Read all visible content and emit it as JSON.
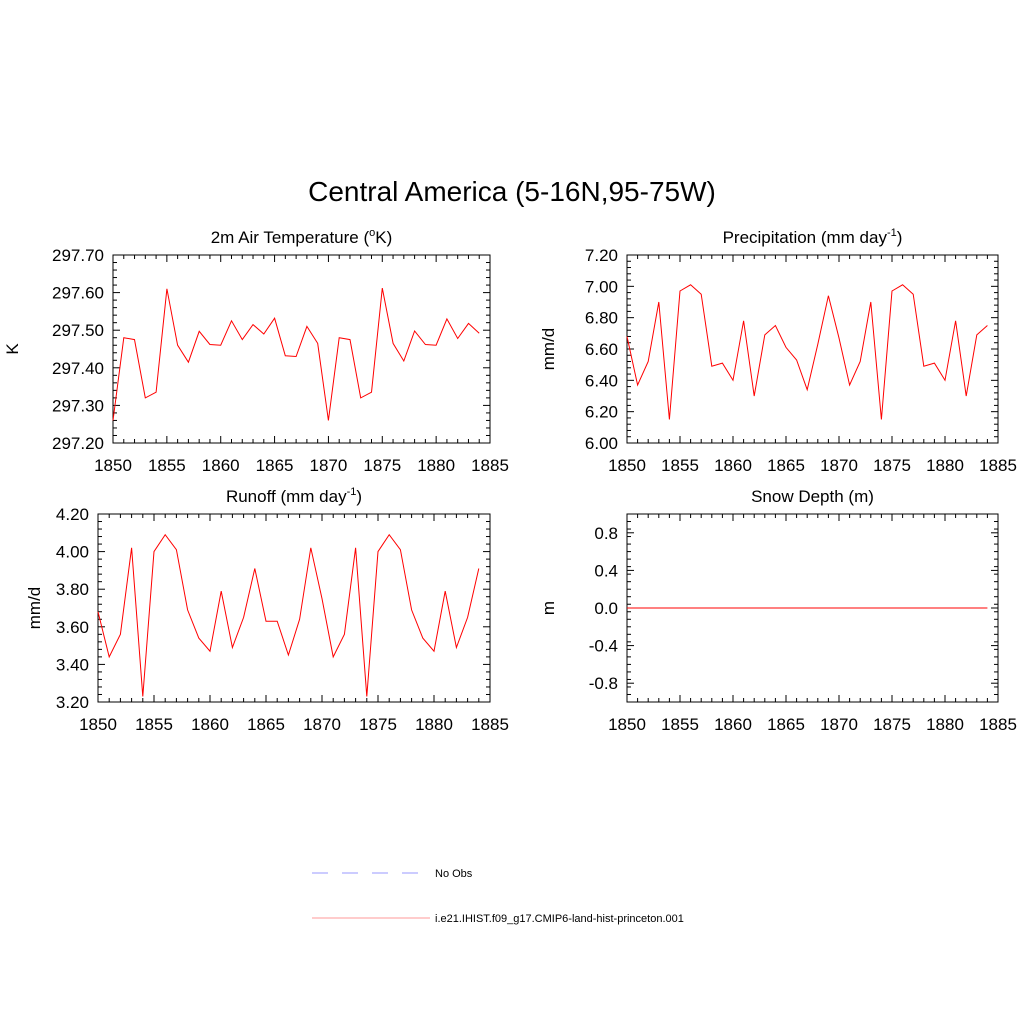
{
  "figure": {
    "title": "Central America (5-16N,95-75W)",
    "legend": [
      {
        "label": "No Obs",
        "color": "#9999ff",
        "dash": true
      },
      {
        "label": "i.e21.IHIST.f09_g17.CMIP6-land-hist-princeton.001",
        "color": "#ff9999",
        "dash": false
      }
    ]
  },
  "chart_data": [
    {
      "type": "line",
      "title": "2m Air Temperature (",
      "title_sup": "o",
      "title_after": "K)",
      "ylabel": "K",
      "xlim": [
        1850,
        1885
      ],
      "ylim": [
        297.2,
        297.7
      ],
      "xticks": [
        1850,
        1855,
        1860,
        1865,
        1870,
        1875,
        1880,
        1885
      ],
      "xtick_labels": [
        "1850",
        "1855",
        "1860",
        "1865",
        "1870",
        "1875",
        "1880",
        "1885"
      ],
      "yticks": [
        297.2,
        297.3,
        297.4,
        297.5,
        297.6,
        297.7
      ],
      "ytick_labels": [
        "297.20",
        "297.30",
        "297.40",
        "297.50",
        "297.60",
        "297.70"
      ],
      "series": [
        {
          "color": "#ff0000",
          "x": [
            1850,
            1851,
            1852,
            1853,
            1854,
            1855,
            1856,
            1857,
            1858,
            1859,
            1860,
            1861,
            1862,
            1863,
            1864,
            1865,
            1866,
            1867,
            1868,
            1869,
            1870,
            1871,
            1872,
            1873,
            1874,
            1875,
            1876,
            1877,
            1878,
            1879,
            1880,
            1881,
            1882,
            1883,
            1884
          ],
          "y": [
            297.26,
            297.48,
            297.475,
            297.32,
            297.335,
            297.61,
            297.46,
            297.415,
            297.497,
            297.462,
            297.46,
            297.525,
            297.475,
            297.515,
            297.49,
            297.532,
            297.432,
            297.43,
            297.51,
            297.465,
            297.26,
            297.48,
            297.475,
            297.32,
            297.335,
            297.612,
            297.465,
            297.418,
            297.498,
            297.462,
            297.46,
            297.53,
            297.478,
            297.518,
            297.492
          ]
        }
      ]
    },
    {
      "type": "line",
      "title": "Precipitation (mm day",
      "title_sup": "-1",
      "title_after": ")",
      "ylabel": "mm/d",
      "xlim": [
        1850,
        1885
      ],
      "ylim": [
        6.0,
        7.2
      ],
      "xticks": [
        1850,
        1855,
        1860,
        1865,
        1870,
        1875,
        1880,
        1885
      ],
      "xtick_labels": [
        "1850",
        "1855",
        "1860",
        "1865",
        "1870",
        "1875",
        "1880",
        "1885"
      ],
      "yticks": [
        6.0,
        6.2,
        6.4,
        6.6,
        6.8,
        7.0,
        7.2
      ],
      "ytick_labels": [
        "6.00",
        "6.20",
        "6.40",
        "6.60",
        "6.80",
        "7.00",
        "7.20"
      ],
      "series": [
        {
          "color": "#ff0000",
          "x": [
            1850,
            1851,
            1852,
            1853,
            1854,
            1855,
            1856,
            1857,
            1858,
            1859,
            1860,
            1861,
            1862,
            1863,
            1864,
            1865,
            1866,
            1867,
            1868,
            1869,
            1870,
            1871,
            1872,
            1873,
            1874,
            1875,
            1876,
            1877,
            1878,
            1879,
            1880,
            1881,
            1882,
            1883,
            1884
          ],
          "y": [
            6.68,
            6.37,
            6.52,
            6.9,
            6.15,
            6.97,
            7.01,
            6.95,
            6.49,
            6.51,
            6.4,
            6.78,
            6.3,
            6.69,
            6.75,
            6.61,
            6.53,
            6.34,
            6.63,
            6.94,
            6.67,
            6.37,
            6.52,
            6.9,
            6.15,
            6.97,
            7.01,
            6.95,
            6.49,
            6.51,
            6.4,
            6.78,
            6.3,
            6.69,
            6.75
          ]
        }
      ]
    },
    {
      "type": "line",
      "title": "Runoff (mm day",
      "title_sup": "-1",
      "title_after": ")",
      "ylabel": "mm/d",
      "xlim": [
        1850,
        1885
      ],
      "ylim": [
        3.2,
        4.2
      ],
      "xticks": [
        1850,
        1855,
        1860,
        1865,
        1870,
        1875,
        1880,
        1885
      ],
      "xtick_labels": [
        "1850",
        "1855",
        "1860",
        "1865",
        "1870",
        "1875",
        "1880",
        "1885"
      ],
      "yticks": [
        3.2,
        3.4,
        3.6,
        3.8,
        4.0,
        4.2
      ],
      "ytick_labels": [
        "3.20",
        "3.40",
        "3.60",
        "3.80",
        "4.00",
        "4.20"
      ],
      "series": [
        {
          "color": "#ff0000",
          "x": [
            1850,
            1851,
            1852,
            1853,
            1854,
            1855,
            1856,
            1857,
            1858,
            1859,
            1860,
            1861,
            1862,
            1863,
            1864,
            1865,
            1866,
            1867,
            1868,
            1869,
            1870,
            1871,
            1872,
            1873,
            1874,
            1875,
            1876,
            1877,
            1878,
            1879,
            1880,
            1881,
            1882,
            1883,
            1884
          ],
          "y": [
            3.68,
            3.44,
            3.56,
            4.02,
            3.23,
            4.0,
            4.09,
            4.01,
            3.69,
            3.54,
            3.47,
            3.79,
            3.49,
            3.65,
            3.91,
            3.63,
            3.63,
            3.45,
            3.64,
            4.02,
            3.75,
            3.44,
            3.56,
            4.02,
            3.23,
            4.0,
            4.09,
            4.01,
            3.69,
            3.54,
            3.47,
            3.79,
            3.49,
            3.65,
            3.91
          ]
        }
      ]
    },
    {
      "type": "line",
      "title": "Snow Depth (m)",
      "title_sup": "",
      "title_after": "",
      "ylabel": "m",
      "xlim": [
        1850,
        1885
      ],
      "ylim": [
        -1.0,
        1.0
      ],
      "xticks": [
        1850,
        1855,
        1860,
        1865,
        1870,
        1875,
        1880,
        1885
      ],
      "xtick_labels": [
        "1850",
        "1855",
        "1860",
        "1865",
        "1870",
        "1875",
        "1880",
        "1885"
      ],
      "yticks": [
        -0.8,
        -0.4,
        0.0,
        0.4,
        0.8
      ],
      "ytick_labels": [
        "-0.8",
        "-0.4",
        "0.0",
        "0.4",
        "0.8"
      ],
      "series": [
        {
          "color": "#ff0000",
          "x": [
            1850,
            1884
          ],
          "y": [
            0,
            0
          ]
        }
      ]
    }
  ]
}
